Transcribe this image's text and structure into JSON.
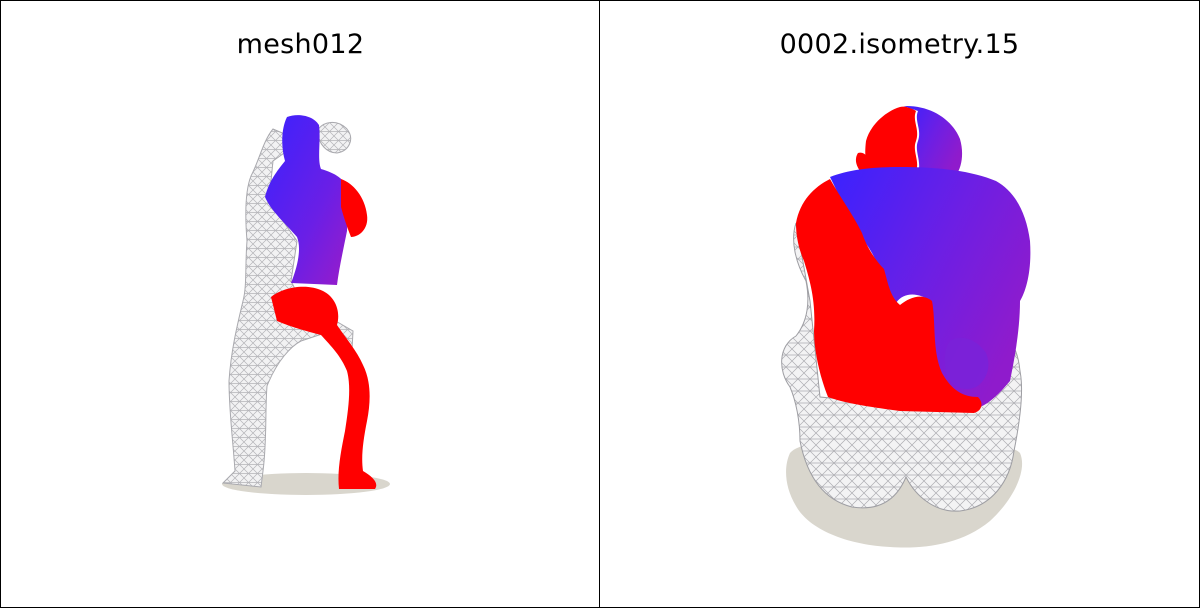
{
  "panels": [
    {
      "title": "mesh012"
    },
    {
      "title": "0002.isometry.15"
    }
  ],
  "colors": {
    "red": "#ff0000",
    "blue": "#3a22ff",
    "purple": "#8a1fd0",
    "wire": "#b9b9bc",
    "shadow": "#d9d6cd",
    "border": "#000000"
  }
}
